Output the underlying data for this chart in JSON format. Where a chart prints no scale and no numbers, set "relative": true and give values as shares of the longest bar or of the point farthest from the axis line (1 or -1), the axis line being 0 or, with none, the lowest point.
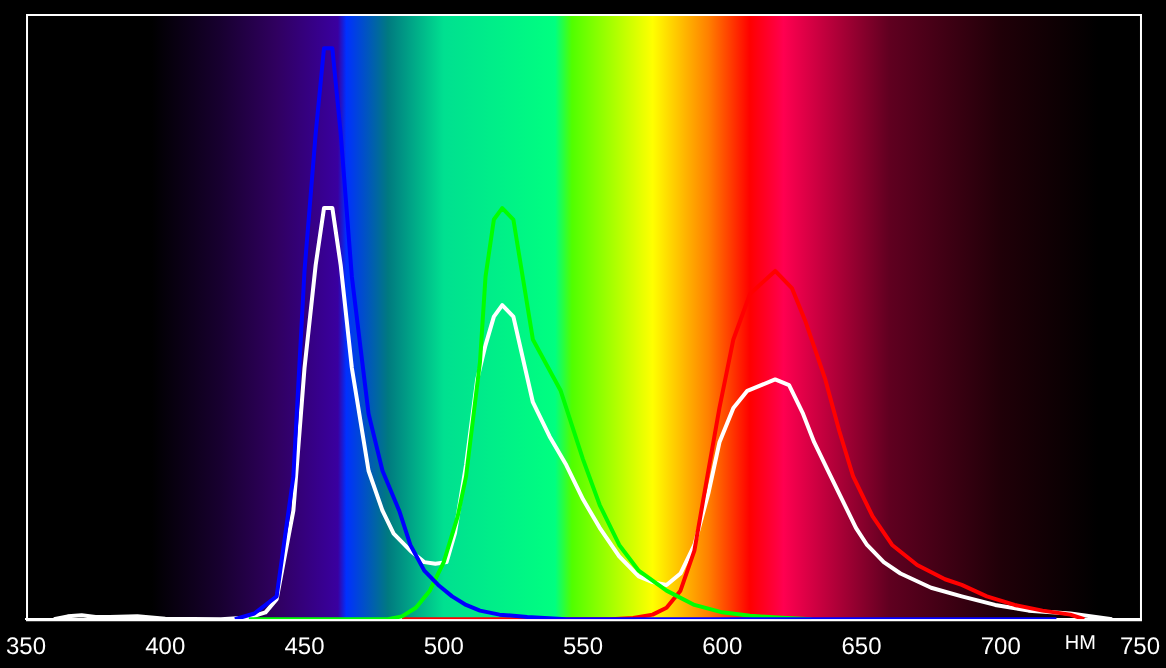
{
  "chart_data": {
    "type": "line",
    "relative": true,
    "xlabel": "НМ",
    "xlim": [
      350,
      750
    ],
    "xticks": [
      350,
      400,
      450,
      500,
      550,
      600,
      650,
      700,
      750
    ],
    "series": [
      {
        "color": "#0000ff",
        "x": [
          425,
          432,
          440,
          446,
          450,
          454,
          457,
          460,
          463,
          467,
          473,
          478,
          484,
          488,
          493,
          498,
          503,
          508,
          513,
          520,
          530,
          544,
          600,
          700,
          720
        ],
        "values": [
          0,
          0.01,
          0.04,
          0.25,
          0.61,
          0.85,
          1,
          1,
          0.85,
          0.6,
          0.36,
          0.26,
          0.19,
          0.13,
          0.085,
          0.06,
          0.04,
          0.025,
          0.015,
          0.008,
          0.004,
          0,
          0,
          0,
          0
        ]
      },
      {
        "color": "#00ff00",
        "x": [
          430,
          480,
          485,
          490,
          495,
          500,
          505,
          508,
          510,
          513,
          515,
          518,
          521,
          525,
          532,
          542,
          550,
          556,
          563,
          570,
          580,
          590,
          600,
          610,
          620,
          632
        ],
        "values": [
          0,
          0,
          0.005,
          0.02,
          0.05,
          0.1,
          0.18,
          0.25,
          0.33,
          0.45,
          0.6,
          0.7,
          0.72,
          0.7,
          0.49,
          0.4,
          0.28,
          0.2,
          0.13,
          0.085,
          0.05,
          0.025,
          0.012,
          0.006,
          0.003,
          0
        ]
      },
      {
        "color": "#ff0000",
        "x": [
          485,
          560,
          568,
          575,
          580,
          585,
          590,
          595,
          599,
          604,
          610,
          619,
          625,
          630,
          637,
          642,
          647,
          654,
          661,
          670,
          680,
          686,
          695,
          705,
          715,
          725,
          730
        ],
        "values": [
          0,
          0,
          0.002,
          0.008,
          0.02,
          0.05,
          0.12,
          0.26,
          0.37,
          0.49,
          0.57,
          0.61,
          0.58,
          0.52,
          0.42,
          0.33,
          0.25,
          0.18,
          0.13,
          0.095,
          0.07,
          0.06,
          0.04,
          0.025,
          0.015,
          0.008,
          0
        ]
      },
      {
        "color": "#ffffff",
        "x": [
          360,
          365,
          370,
          375,
          380,
          390,
          400,
          420,
          430,
          436,
          440,
          446,
          450,
          454,
          457,
          460,
          463,
          467,
          473,
          478,
          482,
          488,
          493,
          497,
          501,
          504,
          508,
          512,
          515,
          518,
          521,
          525,
          532,
          538,
          544,
          550,
          556,
          563,
          570,
          575,
          580,
          585,
          590,
          595,
          599,
          604,
          609,
          614,
          619,
          624,
          629,
          633,
          638,
          643,
          648,
          652,
          658,
          664,
          675,
          686,
          698,
          710,
          725,
          740
        ],
        "values": [
          0,
          0.005,
          0.007,
          0.004,
          0.004,
          0.005,
          0.001,
          0,
          0.003,
          0.012,
          0.035,
          0.19,
          0.44,
          0.62,
          0.72,
          0.72,
          0.62,
          0.44,
          0.26,
          0.19,
          0.15,
          0.12,
          0.1,
          0.097,
          0.1,
          0.15,
          0.27,
          0.42,
          0.48,
          0.53,
          0.55,
          0.53,
          0.38,
          0.32,
          0.27,
          0.21,
          0.16,
          0.11,
          0.075,
          0.065,
          0.06,
          0.08,
          0.13,
          0.22,
          0.31,
          0.37,
          0.4,
          0.41,
          0.42,
          0.41,
          0.36,
          0.31,
          0.26,
          0.21,
          0.16,
          0.13,
          0.1,
          0.08,
          0.055,
          0.04,
          0.025,
          0.015,
          0.01,
          0
        ]
      }
    ]
  }
}
